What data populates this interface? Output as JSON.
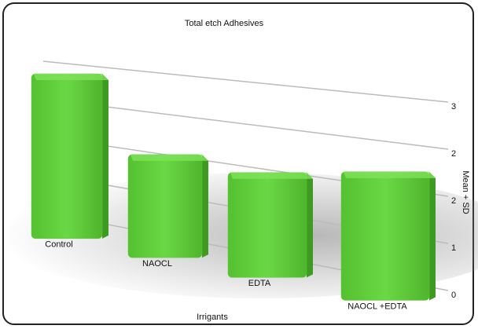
{
  "chart_data": {
    "type": "bar",
    "title": "Total etch Adhesives",
    "x_label": "Irrigants",
    "y_label": "Mean + SD",
    "categories": [
      "Control",
      "NAOCL",
      "EDTA",
      "NAOCL +EDTA"
    ],
    "values": [
      2.8,
      1.5,
      1.45,
      1.75
    ],
    "color": "#5fcb3a",
    "ylim": [
      0,
      3
    ],
    "yticks": [
      0,
      {
        "value": 0.75,
        "label": "1"
      },
      {
        "value": 1.5,
        "label": "2"
      },
      {
        "value": 2.25,
        "label": "2"
      },
      3
    ],
    "grid": true
  }
}
